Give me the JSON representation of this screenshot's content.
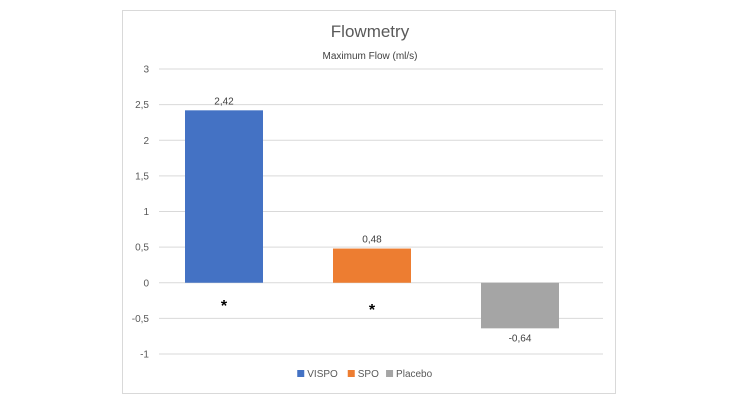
{
  "chart_data": {
    "type": "bar",
    "title": "Flowmetry",
    "subtitle": "Maximum Flow (ml/s)",
    "categories": [
      "VISPO",
      "SPO",
      "Placebo"
    ],
    "values": [
      2.42,
      0.48,
      -0.64
    ],
    "data_labels": [
      "2,42",
      "0,48",
      "-0,64"
    ],
    "colors": [
      "#4472C4",
      "#ED7D31",
      "#A5A5A5"
    ],
    "significance_markers": [
      "*",
      "*",
      ""
    ],
    "ylim": [
      -1,
      3
    ],
    "yticks": [
      3,
      2.5,
      2,
      1.5,
      1,
      0.5,
      0,
      -0.5,
      -1
    ],
    "ytick_labels": [
      "3",
      "2,5",
      "2",
      "1,5",
      "1",
      "0,5",
      "0",
      "-0,5",
      "-1"
    ],
    "grid": true,
    "legend": {
      "position": "bottom",
      "entries": [
        "VISPO",
        "SPO",
        "Placebo"
      ]
    },
    "xlabel": "",
    "ylabel": ""
  }
}
